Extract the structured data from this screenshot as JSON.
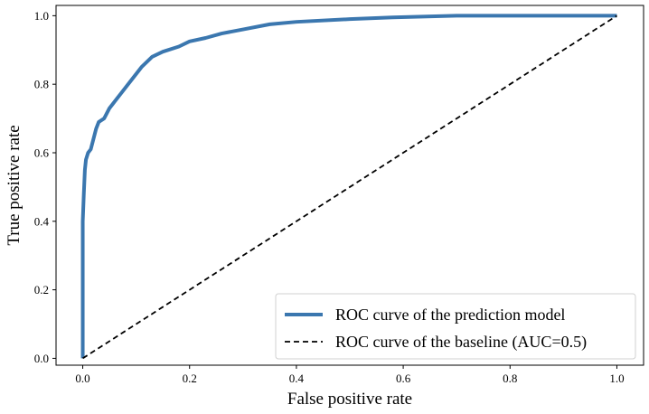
{
  "chart_data": {
    "type": "line",
    "title": "",
    "xlabel": "False positive rate",
    "ylabel": "True positive rate",
    "xlim": [
      -0.05,
      1.05
    ],
    "ylim": [
      -0.02,
      1.03
    ],
    "xticks": [
      "0.0",
      "0.2",
      "0.4",
      "0.6",
      "0.8",
      "1.0"
    ],
    "yticks": [
      "0.0",
      "0.2",
      "0.4",
      "0.6",
      "0.8",
      "1.0"
    ],
    "grid": false,
    "legend_position": "bottom-right",
    "series": [
      {
        "name": "ROC curve of the prediction model",
        "color": "#3b77af",
        "style": "solid",
        "points": [
          [
            0.0,
            0.0
          ],
          [
            0.0,
            0.4
          ],
          [
            0.002,
            0.48
          ],
          [
            0.004,
            0.55
          ],
          [
            0.006,
            0.58
          ],
          [
            0.01,
            0.6
          ],
          [
            0.015,
            0.61
          ],
          [
            0.02,
            0.64
          ],
          [
            0.025,
            0.67
          ],
          [
            0.03,
            0.69
          ],
          [
            0.04,
            0.7
          ],
          [
            0.05,
            0.73
          ],
          [
            0.07,
            0.77
          ],
          [
            0.09,
            0.81
          ],
          [
            0.11,
            0.85
          ],
          [
            0.13,
            0.88
          ],
          [
            0.15,
            0.895
          ],
          [
            0.18,
            0.91
          ],
          [
            0.2,
            0.925
          ],
          [
            0.23,
            0.935
          ],
          [
            0.26,
            0.948
          ],
          [
            0.3,
            0.96
          ],
          [
            0.35,
            0.975
          ],
          [
            0.4,
            0.982
          ],
          [
            0.5,
            0.99
          ],
          [
            0.58,
            0.995
          ],
          [
            0.7,
            1.0
          ],
          [
            1.0,
            1.0
          ]
        ]
      },
      {
        "name": "ROC curve of the baseline (AUC=0.5)",
        "color": "#000000",
        "style": "dashed",
        "points": [
          [
            0.0,
            0.0
          ],
          [
            1.0,
            1.0
          ]
        ]
      }
    ]
  }
}
